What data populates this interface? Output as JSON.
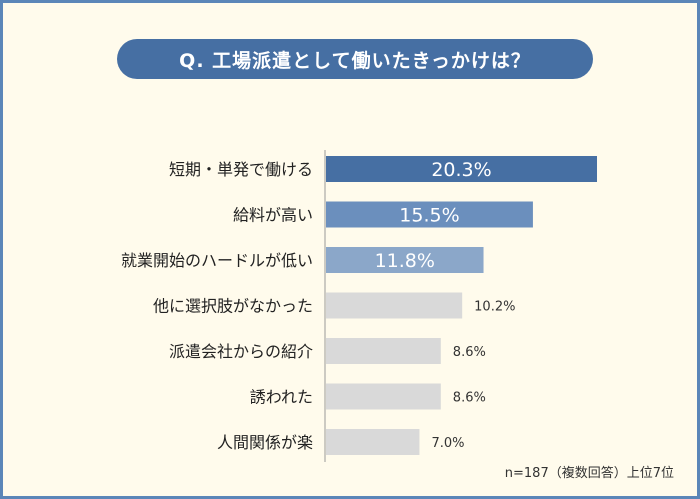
{
  "title": "Q. 工場派遣として働いたきっかけは？",
  "note": "n=187（複数回答）上位7位",
  "chart_data": {
    "type": "bar",
    "orientation": "horizontal",
    "categories": [
      "短期・単発で働ける",
      "給料が高い",
      "就業開始のハードルが低い",
      "他に選択肢がなかった",
      "派遣会社からの紹介",
      "誘われた",
      "人間関係が楽"
    ],
    "values": [
      20.3,
      15.5,
      11.8,
      10.2,
      8.6,
      8.6,
      7.0
    ],
    "value_labels": [
      "20.3%",
      "15.5%",
      "11.8%",
      "10.2%",
      "8.6%",
      "8.6%",
      "7.0%"
    ],
    "unit": "%",
    "bar_colors": [
      "#466fa3",
      "#6b8fbd",
      "#8ba7c9",
      "#d9d9d9",
      "#d9d9d9",
      "#d9d9d9",
      "#d9d9d9"
    ],
    "highlight_top": 3
  }
}
